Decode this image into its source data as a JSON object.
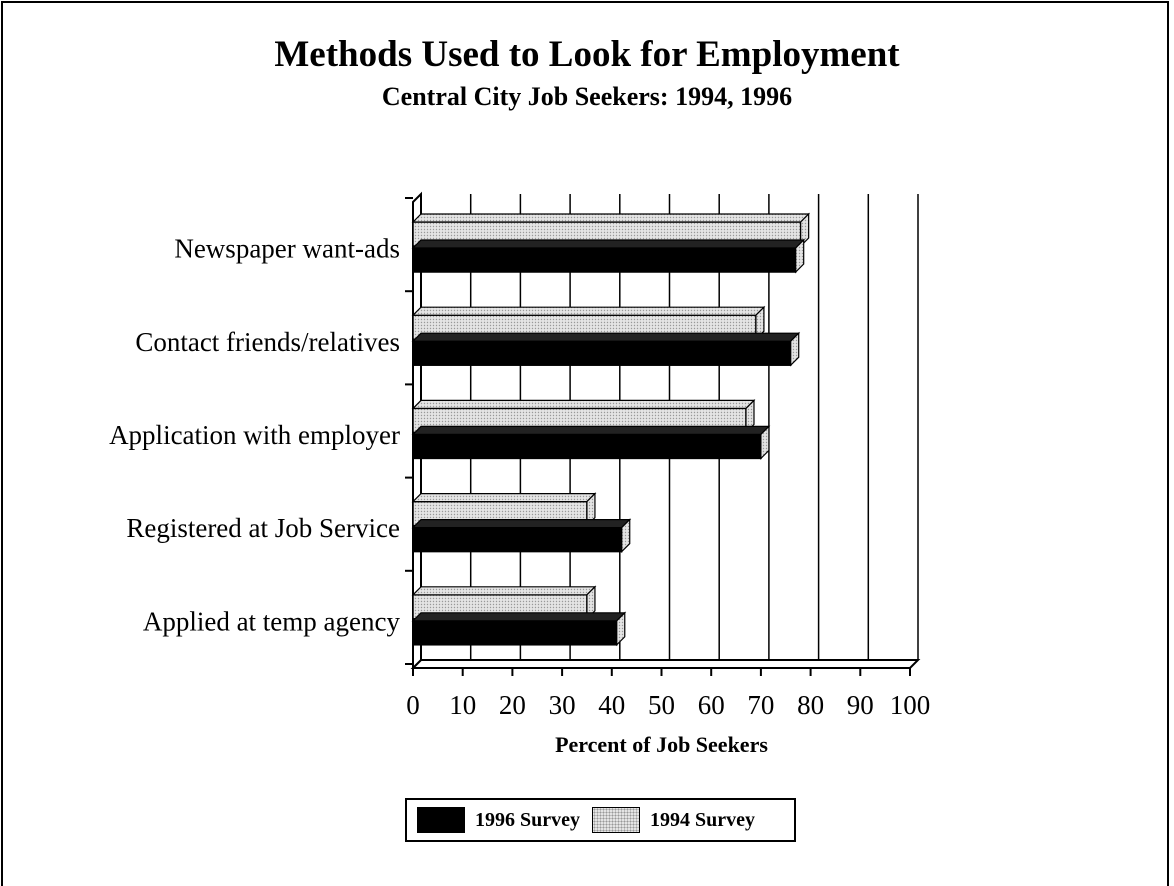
{
  "chart_data": {
    "type": "bar",
    "orientation": "horizontal",
    "title": "Methods Used to Look for Employment",
    "subtitle": "Central City Job Seekers: 1994, 1996",
    "xlabel": "Percent of Job Seekers",
    "xlim": [
      0,
      100
    ],
    "xticks": [
      "0",
      "10",
      "20",
      "30",
      "40",
      "50",
      "60",
      "70",
      "80",
      "90",
      "100"
    ],
    "grid": true,
    "legend_position": "bottom-center",
    "categories": [
      "Newspaper want-ads",
      "Contact friends/relatives",
      "Application with employer",
      "Registered at Job Service",
      "Applied at temp agency"
    ],
    "series": [
      {
        "name": "1994 Survey",
        "color": "#e4e4e4",
        "values": [
          78,
          69,
          67,
          35,
          35
        ]
      },
      {
        "name": "1996 Survey",
        "color": "#000000",
        "values": [
          77,
          76,
          70,
          42,
          41
        ]
      }
    ]
  }
}
